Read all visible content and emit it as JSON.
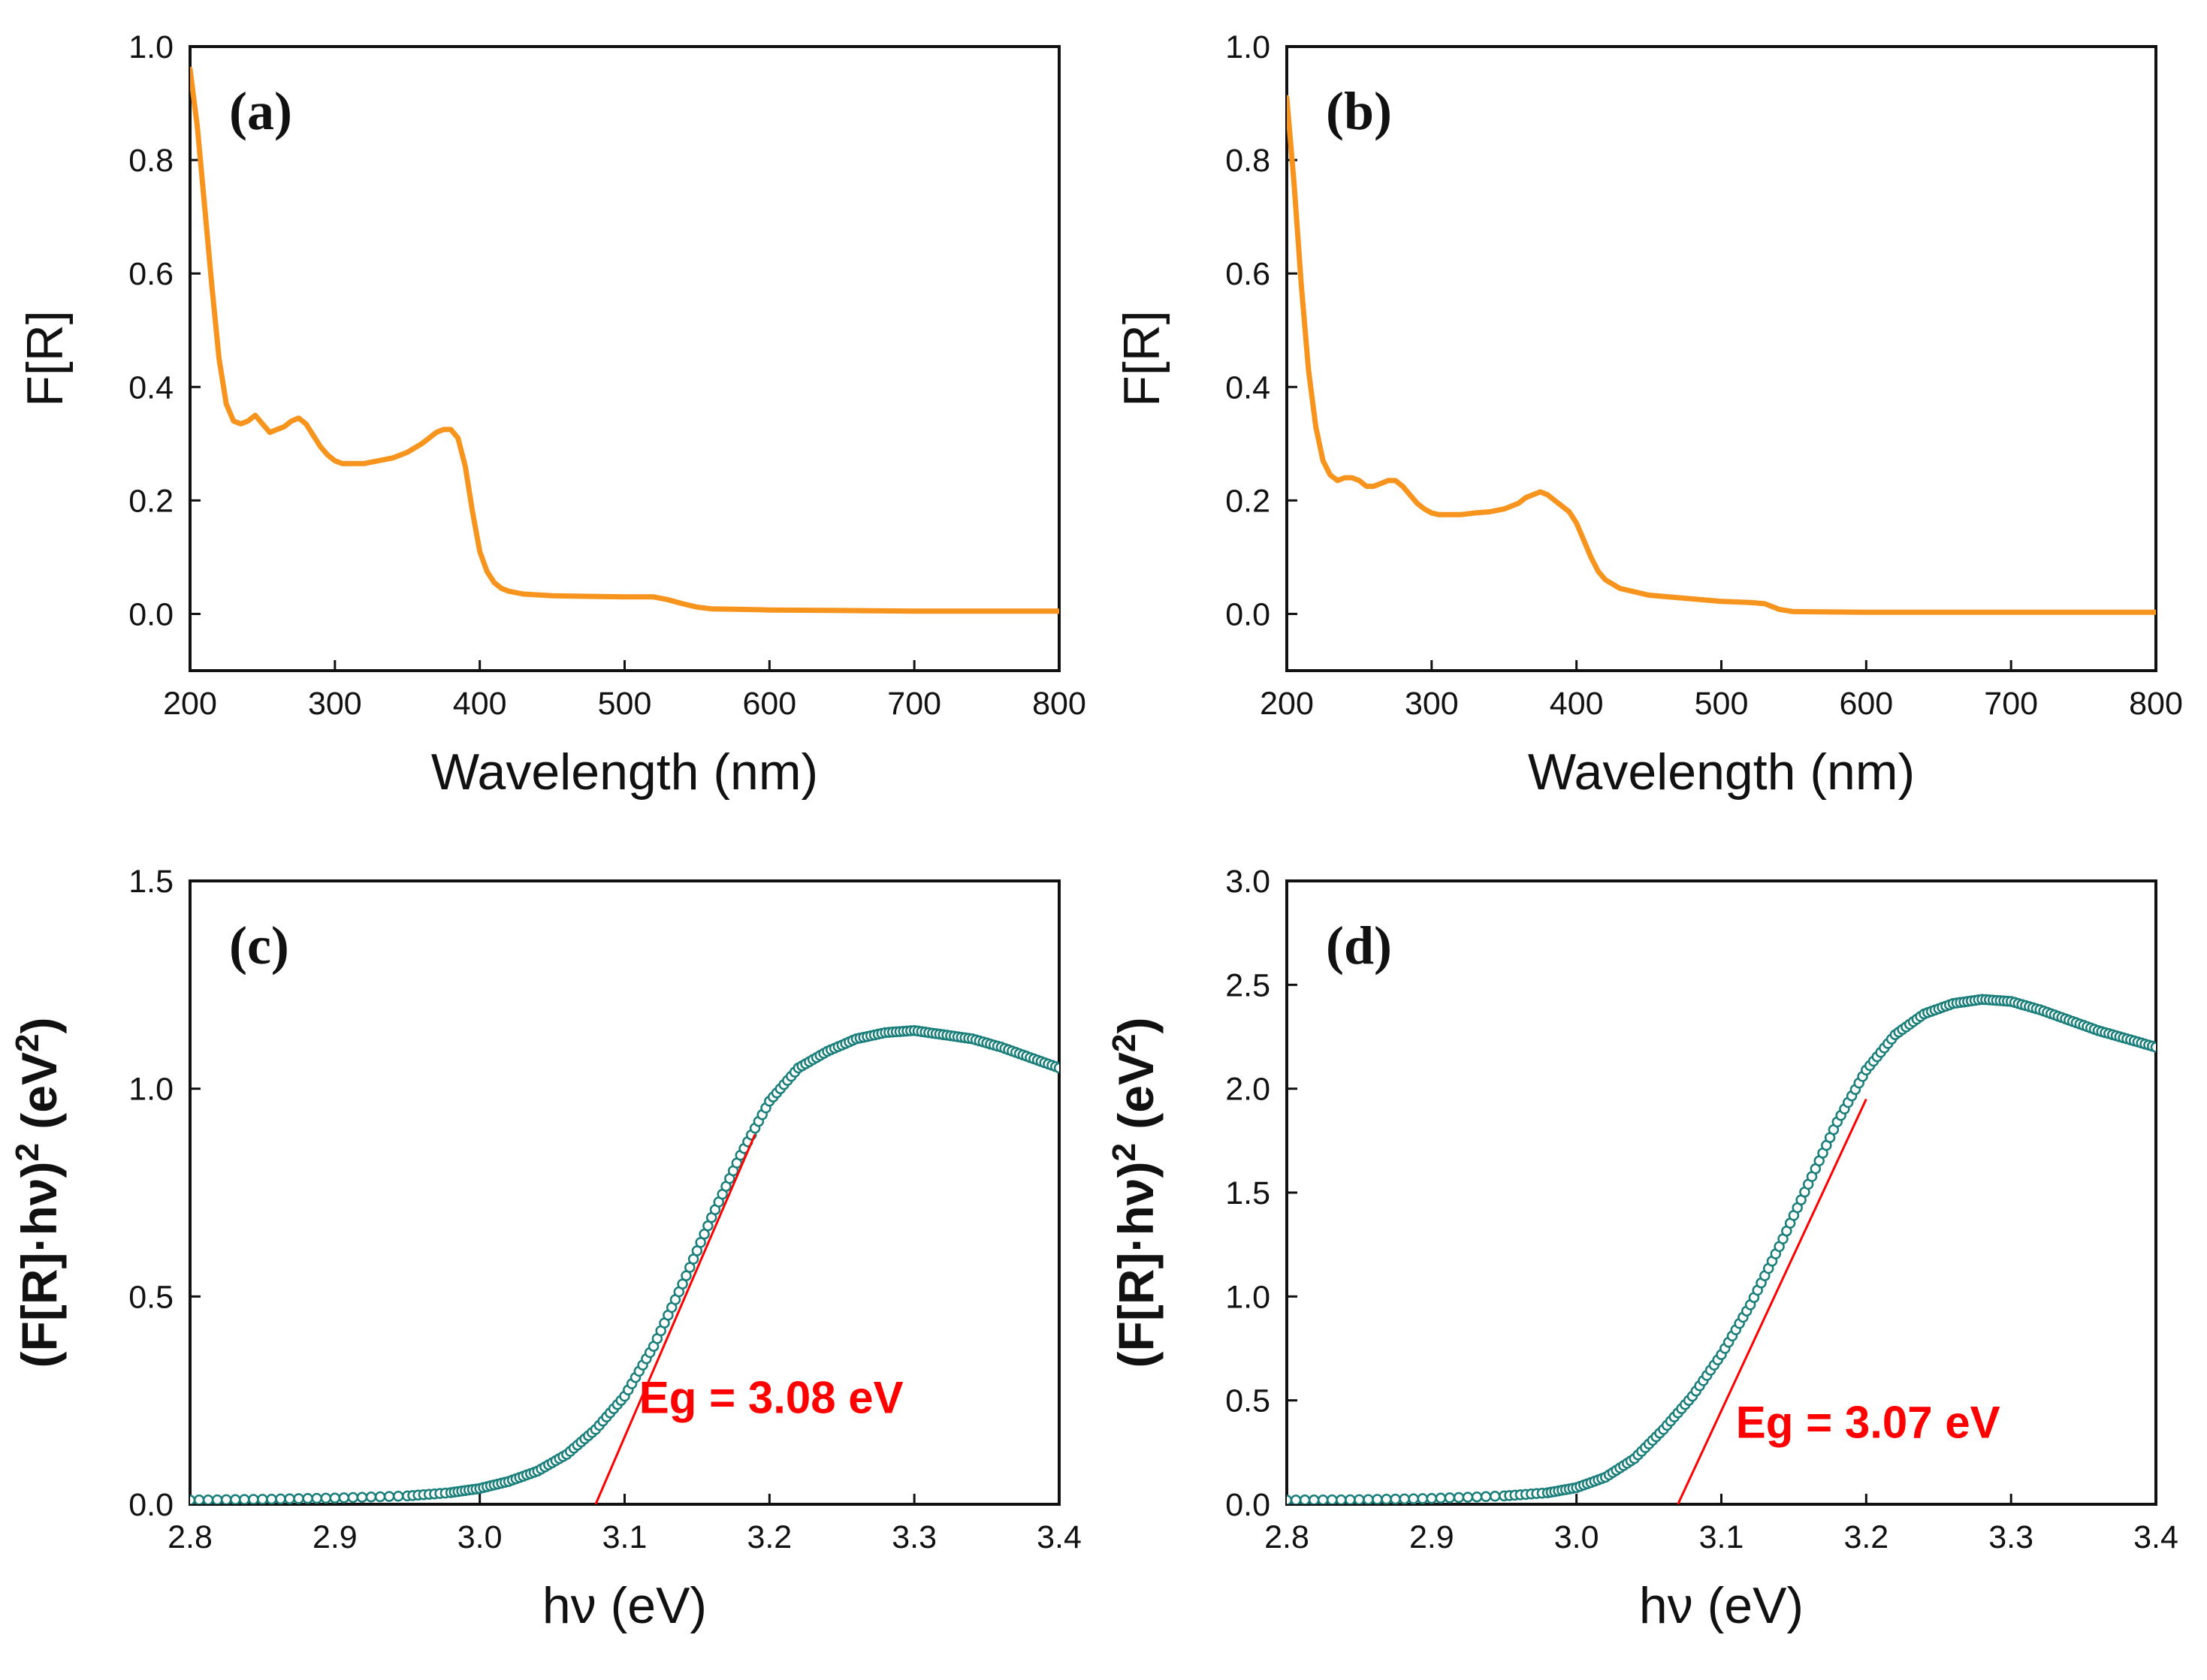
{
  "chart_data": [
    {
      "id": "a",
      "type": "line",
      "panel_label": "(a)",
      "xlabel": "Wavelength (nm)",
      "ylabel": "F[R]",
      "xlim": [
        200,
        800
      ],
      "ylim": [
        -0.1,
        1.0
      ],
      "xticks": [
        200,
        300,
        400,
        500,
        600,
        700,
        800
      ],
      "yticks": [
        0.0,
        0.2,
        0.4,
        0.6,
        0.8,
        1.0
      ],
      "xtick_decimals": 0,
      "ytick_decimals": 1,
      "color": "#f7941d",
      "series": [
        {
          "name": "F[R]",
          "x": [
            200,
            205,
            210,
            215,
            220,
            225,
            230,
            235,
            240,
            245,
            250,
            255,
            260,
            265,
            270,
            275,
            280,
            285,
            290,
            295,
            300,
            305,
            310,
            320,
            330,
            340,
            350,
            360,
            365,
            370,
            375,
            380,
            385,
            390,
            395,
            400,
            405,
            410,
            415,
            420,
            430,
            450,
            500,
            520,
            530,
            540,
            550,
            560,
            580,
            600,
            650,
            700,
            800
          ],
          "y": [
            0.96,
            0.86,
            0.72,
            0.58,
            0.45,
            0.37,
            0.34,
            0.335,
            0.34,
            0.35,
            0.335,
            0.32,
            0.325,
            0.33,
            0.34,
            0.345,
            0.335,
            0.315,
            0.295,
            0.28,
            0.27,
            0.265,
            0.265,
            0.265,
            0.27,
            0.275,
            0.285,
            0.3,
            0.31,
            0.32,
            0.325,
            0.325,
            0.31,
            0.26,
            0.18,
            0.11,
            0.075,
            0.055,
            0.045,
            0.04,
            0.035,
            0.032,
            0.03,
            0.03,
            0.025,
            0.018,
            0.012,
            0.009,
            0.008,
            0.007,
            0.006,
            0.005,
            0.005
          ]
        }
      ]
    },
    {
      "id": "b",
      "type": "line",
      "panel_label": "(b)",
      "xlabel": "Wavelength (nm)",
      "ylabel": "F[R]",
      "xlim": [
        200,
        800
      ],
      "ylim": [
        -0.1,
        1.0
      ],
      "xticks": [
        200,
        300,
        400,
        500,
        600,
        700,
        800
      ],
      "yticks": [
        0.0,
        0.2,
        0.4,
        0.6,
        0.8,
        1.0
      ],
      "xtick_decimals": 0,
      "ytick_decimals": 1,
      "color": "#f7941d",
      "series": [
        {
          "name": "F[R]",
          "x": [
            200,
            205,
            210,
            215,
            220,
            225,
            230,
            235,
            240,
            245,
            250,
            255,
            260,
            265,
            270,
            275,
            280,
            285,
            290,
            295,
            300,
            305,
            310,
            320,
            330,
            340,
            350,
            360,
            365,
            370,
            375,
            380,
            385,
            390,
            395,
            400,
            405,
            410,
            415,
            420,
            430,
            450,
            500,
            520,
            530,
            540,
            550,
            600,
            700,
            800
          ],
          "y": [
            0.91,
            0.76,
            0.58,
            0.43,
            0.33,
            0.27,
            0.245,
            0.235,
            0.24,
            0.24,
            0.235,
            0.225,
            0.225,
            0.23,
            0.235,
            0.235,
            0.225,
            0.21,
            0.195,
            0.185,
            0.178,
            0.175,
            0.175,
            0.175,
            0.178,
            0.18,
            0.185,
            0.195,
            0.205,
            0.21,
            0.215,
            0.21,
            0.2,
            0.19,
            0.18,
            0.16,
            0.13,
            0.1,
            0.075,
            0.06,
            0.045,
            0.033,
            0.022,
            0.02,
            0.018,
            0.008,
            0.004,
            0.003,
            0.003,
            0.003
          ]
        }
      ]
    },
    {
      "id": "c",
      "type": "scatter",
      "panel_label": "(c)",
      "xlabel": "hν (eV)",
      "ylabel_main": "(F[R]·hν)",
      "ylabel_sup": "2",
      "ylabel_unit": " (eV",
      "ylabel_unit_sup": "2",
      "ylabel_end": ")",
      "xlim": [
        2.8,
        3.4
      ],
      "ylim": [
        0.0,
        1.5
      ],
      "xticks": [
        2.8,
        2.9,
        3.0,
        3.1,
        3.2,
        3.3,
        3.4
      ],
      "yticks": [
        0.0,
        0.5,
        1.0,
        1.5
      ],
      "xtick_decimals": 1,
      "ytick_decimals": 1,
      "color": "#1a7f7a",
      "marker": "open-circle",
      "series": [
        {
          "name": "(F[R]·hν)^2",
          "x": [
            2.8,
            2.85,
            2.9,
            2.95,
            2.98,
            3.0,
            3.02,
            3.04,
            3.06,
            3.08,
            3.1,
            3.12,
            3.14,
            3.16,
            3.18,
            3.2,
            3.22,
            3.24,
            3.26,
            3.28,
            3.3,
            3.32,
            3.34,
            3.36,
            3.38,
            3.4
          ],
          "y": [
            0.01,
            0.012,
            0.015,
            0.02,
            0.028,
            0.038,
            0.055,
            0.08,
            0.12,
            0.18,
            0.26,
            0.38,
            0.53,
            0.69,
            0.84,
            0.97,
            1.05,
            1.09,
            1.12,
            1.135,
            1.14,
            1.13,
            1.12,
            1.1,
            1.075,
            1.05
          ]
        }
      ],
      "fit_line": {
        "x": [
          3.08,
          3.19
        ],
        "y": [
          0.0,
          0.89
        ],
        "color": "#ff0000"
      },
      "annotation": {
        "text": "Eg = 3.08 eV",
        "x": 3.11,
        "y": 0.22,
        "color": "#ff0000"
      }
    },
    {
      "id": "d",
      "type": "scatter",
      "panel_label": "(d)",
      "xlabel": "hν (eV)",
      "ylabel_main": "(F[R]·hν)",
      "ylabel_sup": "2",
      "ylabel_unit": " (eV",
      "ylabel_unit_sup": "2",
      "ylabel_end": ")",
      "xlim": [
        2.8,
        3.4
      ],
      "ylim": [
        0.0,
        3.0
      ],
      "xticks": [
        2.8,
        2.9,
        3.0,
        3.1,
        3.2,
        3.3,
        3.4
      ],
      "yticks": [
        0.0,
        0.5,
        1.0,
        1.5,
        2.0,
        2.5,
        3.0
      ],
      "xtick_decimals": 1,
      "ytick_decimals": 1,
      "color": "#1a7f7a",
      "marker": "open-circle",
      "series": [
        {
          "name": "(F[R]·hν)^2",
          "x": [
            2.8,
            2.85,
            2.9,
            2.95,
            2.98,
            3.0,
            3.02,
            3.04,
            3.06,
            3.08,
            3.1,
            3.12,
            3.14,
            3.16,
            3.18,
            3.2,
            3.22,
            3.24,
            3.26,
            3.28,
            3.3,
            3.32,
            3.34,
            3.36,
            3.38,
            3.4
          ],
          "y": [
            0.02,
            0.022,
            0.028,
            0.04,
            0.055,
            0.08,
            0.13,
            0.22,
            0.36,
            0.52,
            0.72,
            0.96,
            1.24,
            1.54,
            1.84,
            2.09,
            2.26,
            2.36,
            2.41,
            2.43,
            2.42,
            2.38,
            2.33,
            2.28,
            2.24,
            2.2
          ]
        }
      ],
      "fit_line": {
        "x": [
          3.07,
          3.2
        ],
        "y": [
          0.0,
          1.95
        ],
        "color": "#ff0000"
      },
      "annotation": {
        "text": "Eg = 3.07 eV",
        "x": 3.11,
        "y": 0.32,
        "color": "#ff0000"
      }
    }
  ]
}
